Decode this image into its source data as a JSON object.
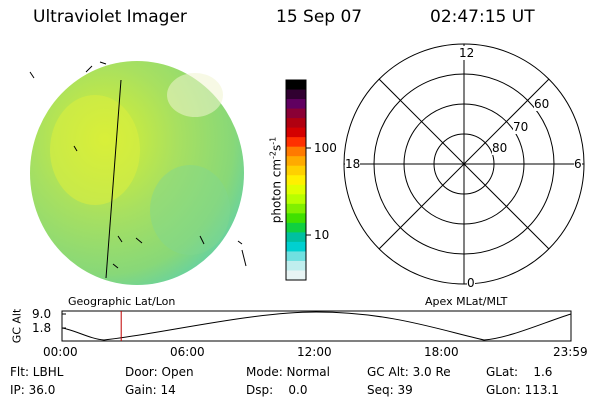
{
  "header": {
    "title": "Ultraviolet Imager",
    "date": "15 Sep 07",
    "time": "02:47:15 UT"
  },
  "colorbar": {
    "label": "photon cm",
    "label_sup1": "-2",
    "label_mid": "s",
    "label_sup2": "-1",
    "ticks": [
      "100",
      "10"
    ],
    "colors": [
      "#000000",
      "#300030",
      "#600060",
      "#8a0035",
      "#b00010",
      "#d40000",
      "#ff3000",
      "#ff7a00",
      "#ffaa00",
      "#ffd000",
      "#fff000",
      "#e0ff00",
      "#b8ff00",
      "#80f000",
      "#40e000",
      "#10d040",
      "#00c0a0",
      "#00d0d0",
      "#70e0e0",
      "#c0eeee",
      "#e8f4f4"
    ]
  },
  "captions": {
    "left": "Geographic Lat/Lon",
    "right": "Apex MLat/MLT"
  },
  "polar": {
    "mlt_labels": {
      "top": "12",
      "left": "18",
      "right": "6",
      "bottom": "0"
    },
    "lat_labels": [
      "60",
      "70",
      "80"
    ]
  },
  "altitude_plot": {
    "ylabel": "GC Alt",
    "yticks": [
      "9.0",
      "1.8"
    ],
    "xticks": [
      "00:00",
      "06:00",
      "12:00",
      "18:00",
      "23:59"
    ],
    "current_time_hours": 2.79,
    "marker_color": "#c00000"
  },
  "info": {
    "flt": "Flt: LBHL",
    "ip": "IP: 36.0",
    "door": "Door: Open",
    "gain": "Gain: 14",
    "mode": "Mode: Normal",
    "dsp": "Dsp:    0.0",
    "gcalt": "GC Alt: 3.0 Re",
    "seq": "Seq: 39",
    "glat": "GLat:    1.6",
    "glon": "GLon: 113.1"
  }
}
